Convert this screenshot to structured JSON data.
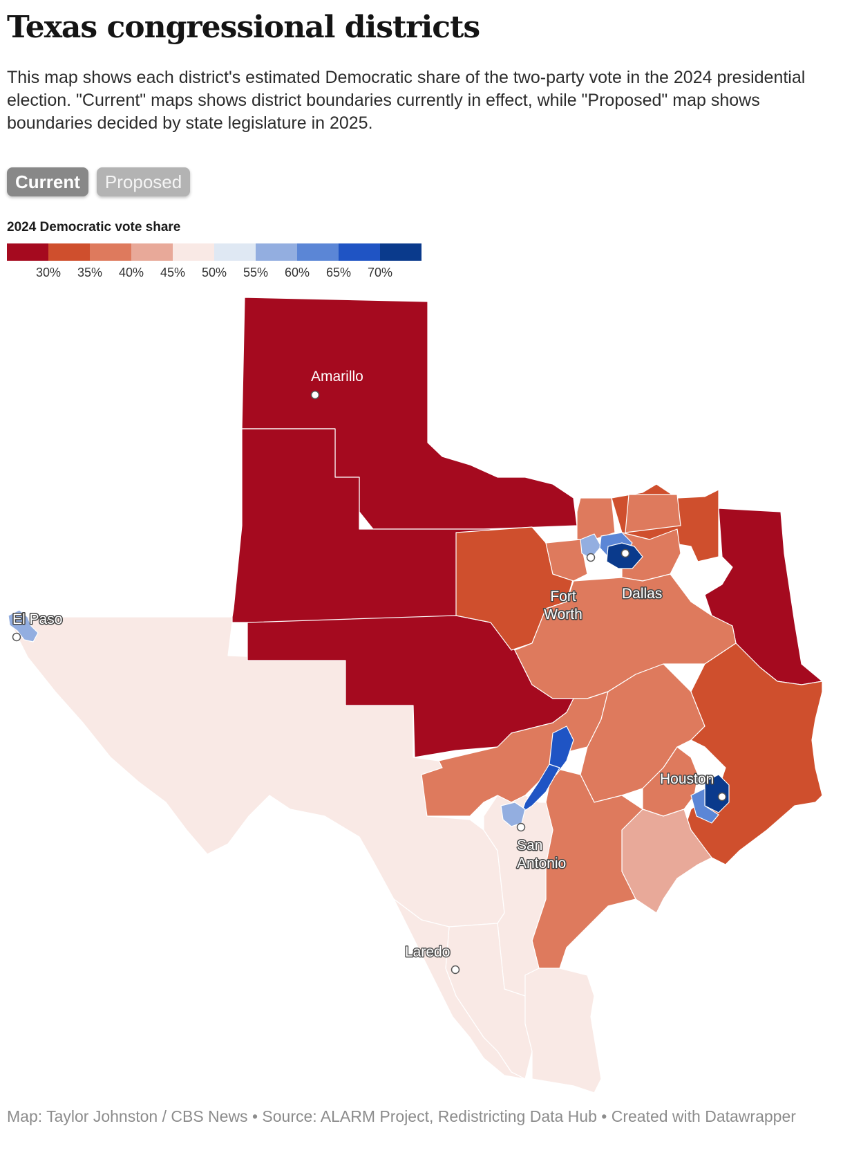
{
  "header": {
    "title": "Texas congressional districts",
    "description": "This map shows each district's estimated Democratic share of the two-party vote in the 2024 presidential election. \"Current\" maps shows district boundaries currently in effect, while \"Proposed\" map shows boundaries decided by state legislature in 2025."
  },
  "tabs": [
    {
      "label": "Current",
      "active": true
    },
    {
      "label": "Proposed",
      "active": false
    }
  ],
  "legend": {
    "title": "2024 Democratic vote share",
    "colors": [
      "#a50a1f",
      "#cf4f2d",
      "#de7a5d",
      "#e8a999",
      "#f9e9e5",
      "#dfe8f3",
      "#93aee0",
      "#5b86d6",
      "#1f54c4",
      "#0a3a8c"
    ],
    "ticks": [
      "30%",
      "35%",
      "40%",
      "45%",
      "50%",
      "55%",
      "60%",
      "65%",
      "70%"
    ]
  },
  "map": {
    "cities": [
      {
        "name": "Amarillo"
      },
      {
        "name": "Fort Worth"
      },
      {
        "name": "Dallas"
      },
      {
        "name": "El Paso"
      },
      {
        "name": "Houston"
      },
      {
        "name": "San Antonio"
      },
      {
        "name": "Laredo"
      }
    ]
  },
  "footer": {
    "credit": "Map: Taylor Johnston / CBS News • Source: ALARM Project, Redistricting Data Hub • Created with Datawrapper"
  }
}
